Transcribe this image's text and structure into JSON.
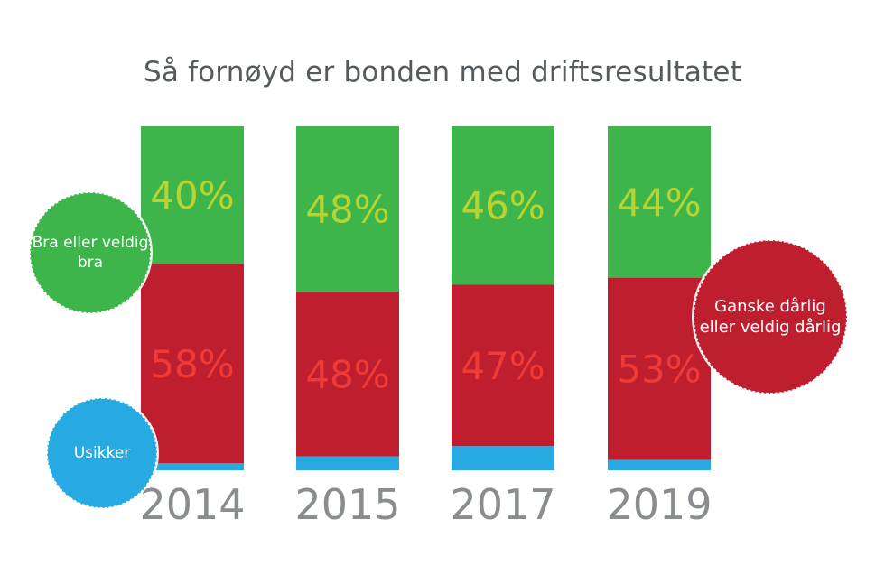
{
  "title": "Så fornøyd er bonden med driftsresultatet",
  "colors": {
    "good": "#3db54a",
    "bad": "#be1e2d",
    "unsure": "#27aae1",
    "good_label": "#b7d433",
    "bad_label": "#ef3b38",
    "year_label": "#8a8d90"
  },
  "badges": {
    "good": "Bra eller veldig bra",
    "bad": "Ganske dårlig eller veldig dårlig",
    "unsure": "Usikker"
  },
  "chart_data": {
    "type": "bar",
    "stacked": true,
    "title": "Så fornøyd er bonden med driftsresultatet",
    "categories": [
      "2014",
      "2015",
      "2017",
      "2019"
    ],
    "series": [
      {
        "name": "Bra eller veldig bra",
        "values": [
          40,
          48,
          46,
          44
        ],
        "labels": [
          "40%",
          "48%",
          "46%",
          "44%"
        ]
      },
      {
        "name": "Ganske dårlig eller veldig dårlig",
        "values": [
          58,
          48,
          47,
          53
        ],
        "labels": [
          "58%",
          "48%",
          "47%",
          "53%"
        ]
      },
      {
        "name": "Usikker",
        "values": [
          2,
          4,
          7,
          3
        ]
      }
    ],
    "ylim": [
      0,
      100
    ],
    "grid": false,
    "legend": "badges"
  }
}
